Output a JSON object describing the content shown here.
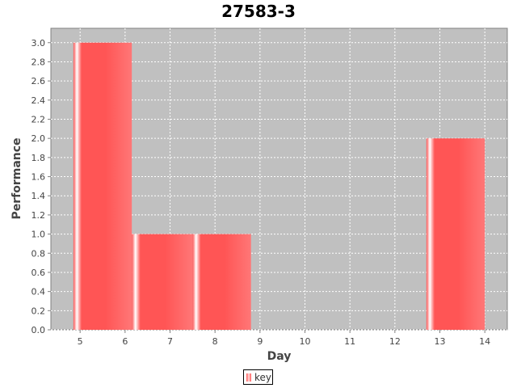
{
  "chart_data": {
    "type": "bar",
    "title": "27583-3",
    "xlabel": "Day",
    "ylabel": "Performance",
    "x_ticks": [
      5,
      6,
      7,
      8,
      9,
      10,
      11,
      12,
      13,
      14
    ],
    "y_ticks": [
      0.0,
      0.2,
      0.4,
      0.6,
      0.8,
      1.0,
      1.2,
      1.4,
      1.6,
      1.8,
      2.0,
      2.2,
      2.4,
      2.6,
      2.8,
      3.0
    ],
    "xlim": [
      4.35,
      14.5
    ],
    "ylim": [
      0,
      3.15
    ],
    "grid": true,
    "legend_position": "bottom",
    "series": [
      {
        "name": "key",
        "color": "#ff5555",
        "bars": [
          {
            "x_start": 4.85,
            "x_end": 6.15,
            "value": 3.0
          },
          {
            "x_start": 6.15,
            "x_end": 7.5,
            "value": 1.0
          },
          {
            "x_start": 7.5,
            "x_end": 8.8,
            "value": 1.0
          },
          {
            "x_start": 12.7,
            "x_end": 14.0,
            "value": 2.0
          }
        ]
      }
    ]
  }
}
